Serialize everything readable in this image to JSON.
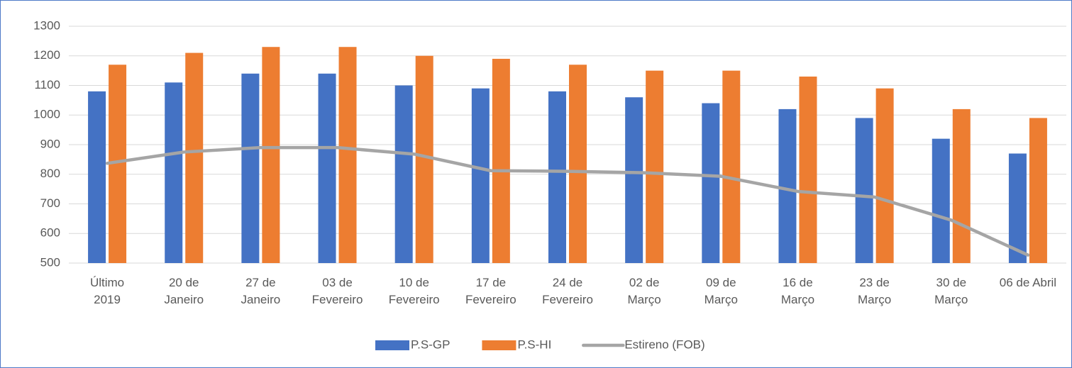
{
  "chart_data": {
    "type": "bar",
    "categories": [
      "Último\n2019",
      "20 de\nJaneiro",
      "27 de\nJaneiro",
      "03 de\nFevereiro",
      "10 de\nFevereiro",
      "17 de\nFevereiro",
      "24 de\nFevereiro",
      "02 de\nMarço",
      "09 de\nMarço",
      "16 de\nMarço",
      "23 de\nMarço",
      "30 de\nMarço",
      "06 de Abril"
    ],
    "series": [
      {
        "name": "P.S-GP",
        "type": "bar",
        "color": "#4472c4",
        "values": [
          1080,
          1110,
          1140,
          1140,
          1100,
          1090,
          1080,
          1060,
          1040,
          1020,
          990,
          920,
          870
        ]
      },
      {
        "name": "P.S-HI",
        "type": "bar",
        "color": "#ed7d31",
        "values": [
          1170,
          1210,
          1230,
          1230,
          1200,
          1190,
          1170,
          1150,
          1150,
          1130,
          1090,
          1020,
          990
        ]
      },
      {
        "name": "Estireno (FOB)",
        "type": "line",
        "color": "#a5a5a5",
        "values": [
          837,
          875,
          890,
          890,
          868,
          812,
          810,
          805,
          793,
          742,
          723,
          645,
          527
        ]
      }
    ],
    "ylim": [
      500,
      1300
    ],
    "yticks": [
      500,
      600,
      700,
      800,
      900,
      1000,
      1100,
      1200,
      1300
    ],
    "grid": true,
    "legend": "bottom"
  }
}
